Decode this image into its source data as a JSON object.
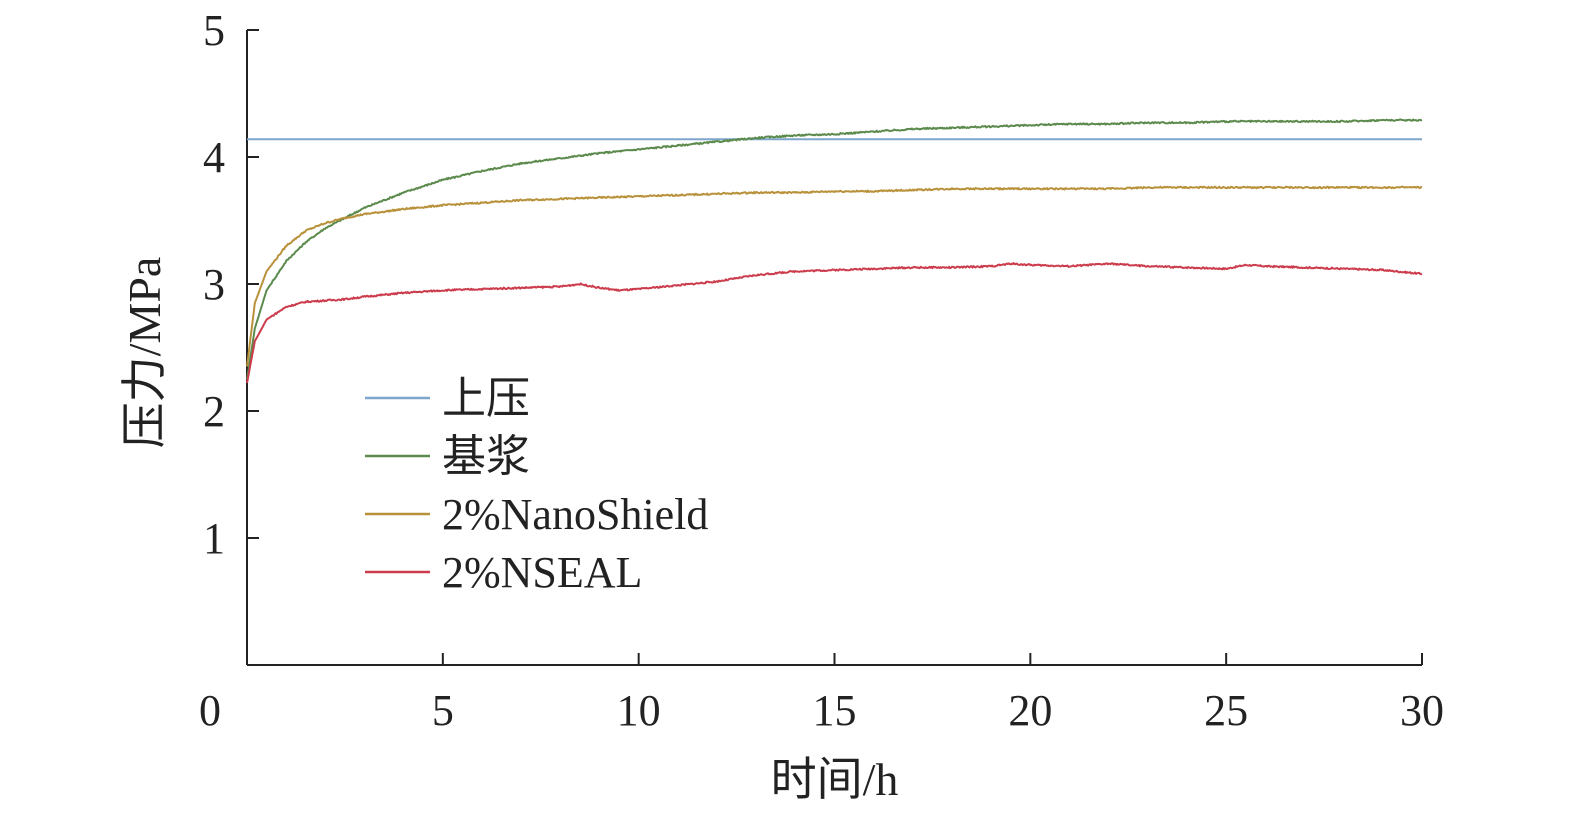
{
  "chart_data": {
    "type": "line",
    "title": "",
    "xlabel": "时间/h",
    "ylabel": "压力/MPa",
    "xlim": [
      0,
      30
    ],
    "ylim": [
      0,
      5
    ],
    "x_ticks": [
      0,
      5,
      10,
      15,
      20,
      25,
      30
    ],
    "y_ticks": [
      1,
      2,
      3,
      4,
      5
    ],
    "grid": false,
    "legend_position": "lower-left",
    "series": [
      {
        "name": "上压",
        "color": "#7ea6cc",
        "x": [
          0,
          30
        ],
        "y": [
          4.14,
          4.14
        ]
      },
      {
        "name": "基浆",
        "color": "#5b8a4c",
        "x": [
          0,
          0.2,
          0.5,
          1,
          1.5,
          2,
          2.5,
          3,
          4,
          5,
          6,
          7,
          8,
          9,
          10,
          11,
          12,
          13,
          14,
          15,
          16,
          17,
          18,
          19,
          20,
          21,
          22,
          23,
          24,
          25,
          26,
          27,
          28,
          29,
          30
        ],
        "y": [
          2.25,
          2.65,
          2.95,
          3.18,
          3.33,
          3.44,
          3.52,
          3.6,
          3.72,
          3.82,
          3.89,
          3.95,
          3.99,
          4.03,
          4.06,
          4.09,
          4.12,
          4.15,
          4.17,
          4.18,
          4.2,
          4.22,
          4.23,
          4.24,
          4.25,
          4.26,
          4.26,
          4.27,
          4.27,
          4.28,
          4.28,
          4.28,
          4.28,
          4.29,
          4.29
        ]
      },
      {
        "name": "2%NanoShield",
        "color": "#b8913a",
        "x": [
          0,
          0.2,
          0.5,
          1,
          1.5,
          2,
          2.5,
          3,
          4,
          5,
          6,
          7,
          8,
          9,
          10,
          11,
          12,
          13,
          14,
          15,
          16,
          17,
          18,
          19,
          20,
          21,
          22,
          23,
          24,
          25,
          26,
          27,
          28,
          29,
          30
        ],
        "y": [
          2.35,
          2.85,
          3.1,
          3.3,
          3.42,
          3.48,
          3.52,
          3.55,
          3.59,
          3.62,
          3.64,
          3.66,
          3.67,
          3.68,
          3.69,
          3.7,
          3.71,
          3.72,
          3.72,
          3.73,
          3.73,
          3.74,
          3.75,
          3.75,
          3.75,
          3.75,
          3.75,
          3.76,
          3.76,
          3.76,
          3.76,
          3.76,
          3.76,
          3.76,
          3.76
        ]
      },
      {
        "name": "2%NSEAL",
        "color": "#cc3c4c",
        "x": [
          0,
          0.2,
          0.5,
          1,
          1.5,
          2,
          2.5,
          3,
          4,
          5,
          6,
          7,
          8,
          8.5,
          9,
          9.5,
          10,
          11,
          12,
          13,
          14,
          15,
          16,
          17,
          18,
          19,
          19.5,
          20,
          21,
          22,
          23,
          24,
          25,
          25.5,
          26,
          27,
          28,
          29,
          30
        ],
        "y": [
          2.22,
          2.55,
          2.72,
          2.82,
          2.86,
          2.87,
          2.88,
          2.9,
          2.93,
          2.95,
          2.96,
          2.97,
          2.98,
          3.0,
          2.97,
          2.95,
          2.96,
          2.99,
          3.02,
          3.07,
          3.1,
          3.11,
          3.12,
          3.13,
          3.13,
          3.14,
          3.16,
          3.15,
          3.14,
          3.16,
          3.14,
          3.13,
          3.12,
          3.15,
          3.14,
          3.13,
          3.12,
          3.11,
          3.08
        ]
      }
    ]
  }
}
